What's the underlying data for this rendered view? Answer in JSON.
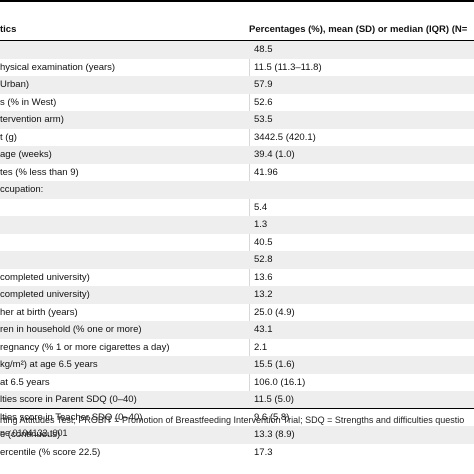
{
  "header": {
    "col1": "tics",
    "col2": "Percentages (%), mean (SD) or median (IQR) (N="
  },
  "rows": [
    {
      "label": "",
      "value": "48.5"
    },
    {
      "label": "hysical examination (years)",
      "value": "11.5 (11.3–11.8)"
    },
    {
      "label": "Urban)",
      "value": "57.9"
    },
    {
      "label": "s (% in West)",
      "value": "52.6"
    },
    {
      "label": "tervention arm)",
      "value": "53.5"
    },
    {
      "label": "t (g)",
      "value": "3442.5 (420.1)"
    },
    {
      "label": "age (weeks)",
      "value": "39.4 (1.0)"
    },
    {
      "label": "tes (% less than 9)",
      "value": "41.96"
    },
    {
      "label": "ccupation:",
      "value": ""
    },
    {
      "label": "",
      "value": "5.4"
    },
    {
      "label": "",
      "value": "1.3"
    },
    {
      "label": "",
      "value": "40.5"
    },
    {
      "label": "",
      "value": "52.8"
    },
    {
      "label": "completed university)",
      "value": "13.6"
    },
    {
      "label": "completed university)",
      "value": "13.2"
    },
    {
      "label": "her at birth (years)",
      "value": "25.0 (4.9)"
    },
    {
      "label": "ren in household (% one or more)",
      "value": "43.1"
    },
    {
      "label": "regnancy (% 1 or more cigarettes a day)",
      "value": "2.1"
    },
    {
      "label": "kg/m²) at age 6.5 years",
      "value": "15.5 (1.6)"
    },
    {
      "label": "at 6.5 years",
      "value": "106.0 (16.1)"
    },
    {
      "label": "lties score in Parent SDQ (0–40)",
      "value": "11.5 (5.0)"
    },
    {
      "label": "lties score in Teacher SDQ (0–40)",
      "value": "9.6 (5.8)"
    },
    {
      "label": "e (continuous)",
      "value": "13.3 (8.9)"
    },
    {
      "label": "ercentile (% score 22.5)",
      "value": "17.3"
    }
  ],
  "footer": {
    "line1": "rting Attitudes Test; PROBIT = Promotion of Breastfeeding Intervention Trial; SDQ = Strengths and difficulties questio",
    "line2": "ne.0104132.t001"
  }
}
